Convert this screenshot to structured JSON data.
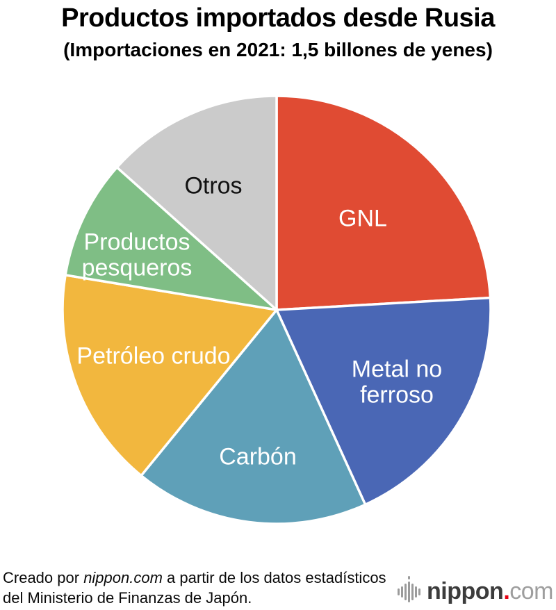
{
  "title": "Productos importados desde Rusia",
  "subtitle": "(Importaciones en 2021: 1,5 billones de yenes)",
  "chart_data": {
    "type": "pie",
    "title": "Productos importados desde Rusia",
    "subtitle": "(Importaciones en 2021: 1,5 billones de yenes)",
    "total": "1,5 billones de yenes",
    "unit": "% (estimado a partir de los ángulos)",
    "start_angle_deg": 0,
    "direction": "clockwise",
    "legend_position": "labels-inside-slices",
    "segments": [
      {
        "id": "gnl",
        "label": "GNL",
        "label_lines": [
          "GNL"
        ],
        "value": 24.1,
        "color": "#e04b33",
        "label_color": "#ffffff",
        "label_r": 0.585
      },
      {
        "id": "metal-no-ferroso",
        "label": "Metal no ferroso",
        "label_lines": [
          "Metal no",
          "ferroso"
        ],
        "value": 19.1,
        "color": "#4a67b5",
        "label_color": "#ffffff",
        "label_r": 0.655
      },
      {
        "id": "carbon",
        "label": "Carbón",
        "label_lines": [
          "Carbón"
        ],
        "value": 17.7,
        "color": "#5fa0b8",
        "label_color": "#ffffff",
        "label_r": 0.695
      },
      {
        "id": "petroleo-crudo",
        "label": "Petróleo crudo",
        "label_lines": [
          "Petróleo crudo"
        ],
        "value": 16.7,
        "color": "#f2b73e",
        "label_color": "#ffffff",
        "label_r": 0.615
      },
      {
        "id": "productos-pesqueros",
        "label": "Productos pesqueros",
        "label_lines": [
          "Productos",
          "pesqueros"
        ],
        "value": 9.0,
        "color": "#7fbe85",
        "label_color": "#ffffff",
        "label_r": 0.7,
        "label_offset": [
          -6,
          14
        ]
      },
      {
        "id": "otros",
        "label": "Otros",
        "label_lines": [
          "Otros"
        ],
        "value": 13.4,
        "color": "#cbcbcb",
        "label_color": "#111111",
        "label_r": 0.65,
        "label_offset": [
          -9,
          5
        ]
      }
    ]
  },
  "footer": {
    "source_prefix": "Creado por ",
    "source_brand": "nippon.com",
    "source_suffix": " a partir de los datos estadísticos del Ministerio de Finanzas de Japón.",
    "logo": {
      "brand": "nippon",
      "dot": ".",
      "tld": "com",
      "brand_color": "#3c3c3c",
      "dot_color": "#e60012",
      "tld_color": "#9e9e9e",
      "bars_color": "#9b9b9b"
    }
  }
}
